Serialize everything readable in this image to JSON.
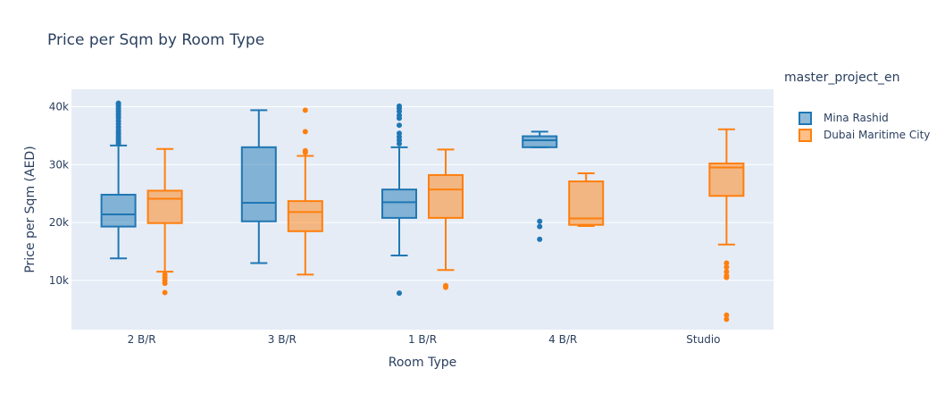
{
  "chart_data": {
    "type": "box",
    "title": "Price per Sqm by Room Type",
    "xlabel": "Room Type",
    "ylabel": "Price per Sqm (AED)",
    "ylim": [
      1500,
      43000
    ],
    "yticks": [
      10000,
      20000,
      30000,
      40000
    ],
    "ytick_labels": [
      "10k",
      "20k",
      "30k",
      "40k"
    ],
    "grid": true,
    "legend_title": "master_project_en",
    "legend_position": "right",
    "categories": [
      "2 B/R",
      "3 B/R",
      "1 B/R",
      "4 B/R",
      "Studio"
    ],
    "series": [
      {
        "name": "Mina Rashid",
        "color": "#1f77b4",
        "boxes": [
          {
            "category": "2 B/R",
            "lowerfence": 13800,
            "q1": 19300,
            "median": 21400,
            "q3": 24800,
            "upperfence": 33300,
            "outliers": [
              33600,
              34000,
              34400,
              34800,
              35200,
              35600,
              36000,
              36500,
              37000,
              37500,
              38000,
              38400,
              38800,
              39200,
              39600,
              40000,
              40400,
              40600
            ]
          },
          {
            "category": "3 B/R",
            "lowerfence": 13000,
            "q1": 20200,
            "median": 23400,
            "q3": 33000,
            "upperfence": 39400,
            "outliers": []
          },
          {
            "category": "1 B/R",
            "lowerfence": 14300,
            "q1": 20800,
            "median": 23500,
            "q3": 25700,
            "upperfence": 33000,
            "outliers": [
              7800,
              33600,
              34200,
              34800,
              35400,
              36800,
              38000,
              38500,
              39200,
              39700,
              40100
            ]
          },
          {
            "category": "4 B/R",
            "lowerfence": 33000,
            "q1": 33000,
            "median": 34200,
            "q3": 34900,
            "upperfence": 35700,
            "outliers": [
              17100,
              19300,
              20200
            ]
          }
        ]
      },
      {
        "name": "Dubai Maritime City",
        "color": "#ff7f0e",
        "boxes": [
          {
            "category": "2 B/R",
            "lowerfence": 11500,
            "q1": 19900,
            "median": 24100,
            "q3": 25500,
            "upperfence": 32700,
            "outliers": [
              7900,
              9500,
              10000,
              10500,
              11000
            ]
          },
          {
            "category": "3 B/R",
            "lowerfence": 11000,
            "q1": 18500,
            "median": 21800,
            "q3": 23700,
            "upperfence": 31500,
            "outliers": [
              32100,
              32400,
              35700,
              39400
            ]
          },
          {
            "category": "1 B/R",
            "lowerfence": 11800,
            "q1": 20800,
            "median": 25700,
            "q3": 28200,
            "upperfence": 32600,
            "outliers": [
              8800,
              9100
            ]
          },
          {
            "category": "4 B/R",
            "lowerfence": 19400,
            "q1": 19600,
            "median": 20700,
            "q3": 27100,
            "upperfence": 28500,
            "outliers": []
          },
          {
            "category": "Studio",
            "lowerfence": 16200,
            "q1": 24600,
            "median": 29500,
            "q3": 30200,
            "upperfence": 36100,
            "outliers": [
              3300,
              4000,
              10500,
              10800,
              11500,
              12300,
              13000
            ]
          }
        ]
      }
    ]
  }
}
